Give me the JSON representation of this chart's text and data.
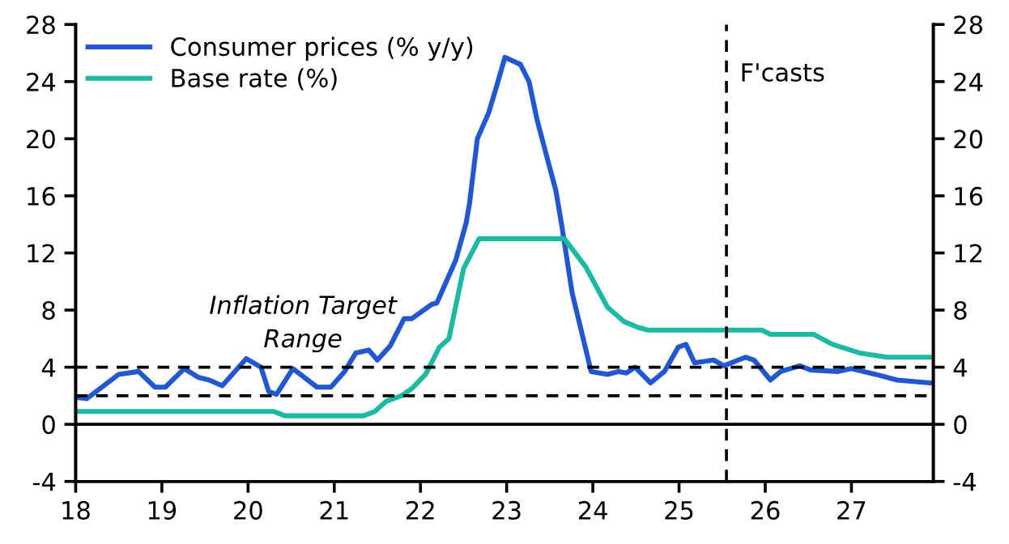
{
  "chart_data": {
    "type": "line",
    "xlim": [
      18,
      27.95
    ],
    "xticks": [
      18,
      19,
      20,
      21,
      22,
      23,
      24,
      25,
      26,
      27
    ],
    "ylim": [
      -4,
      28
    ],
    "yticks": [
      -4,
      0,
      4,
      8,
      12,
      16,
      20,
      24,
      28
    ],
    "y2lim": [
      -4,
      28
    ],
    "y2ticks": [
      -4,
      0,
      4,
      8,
      12,
      16,
      20,
      24,
      28
    ],
    "grid": false,
    "legend": "top left",
    "marker": "none",
    "line_style": "solid",
    "series": [
      {
        "name": "Consumer prices (% y/y)",
        "color": "#2157d1",
        "x": [
          18.0,
          18.13,
          18.5,
          18.73,
          18.92,
          19.04,
          19.26,
          19.42,
          19.55,
          19.7,
          19.98,
          20.15,
          20.24,
          20.33,
          20.52,
          20.8,
          20.96,
          21.12,
          21.25,
          21.4,
          21.5,
          21.65,
          21.81,
          21.9,
          22.13,
          22.19,
          22.41,
          22.53,
          22.57,
          22.66,
          22.79,
          22.88,
          22.98,
          23.16,
          23.26,
          23.35,
          23.45,
          23.57,
          23.64,
          23.76,
          23.98,
          24.17,
          24.3,
          24.39,
          24.49,
          24.67,
          24.83,
          24.99,
          25.08,
          25.18,
          25.4,
          25.52,
          25.77,
          25.87,
          26.06,
          26.18,
          26.4,
          26.53,
          26.84,
          27.0,
          27.28,
          27.53,
          27.72,
          27.91
        ],
        "values": [
          1.9,
          1.8,
          3.5,
          3.7,
          2.6,
          2.6,
          3.9,
          3.3,
          3.1,
          2.7,
          4.6,
          4.0,
          2.3,
          2.1,
          3.9,
          2.6,
          2.6,
          3.7,
          5.0,
          5.2,
          4.5,
          5.5,
          7.4,
          7.4,
          8.4,
          8.5,
          11.5,
          14.1,
          15.5,
          20.0,
          21.8,
          23.6,
          25.7,
          25.2,
          24.0,
          21.4,
          19.1,
          16.4,
          13.9,
          9.2,
          3.7,
          3.5,
          3.7,
          3.6,
          4.0,
          2.9,
          3.7,
          5.4,
          5.6,
          4.3,
          4.5,
          4.1,
          4.7,
          4.5,
          3.1,
          3.7,
          4.1,
          3.8,
          3.7,
          3.9,
          3.5,
          3.1,
          3.0,
          2.9
        ]
      },
      {
        "name": "Base rate (%)",
        "color": "#1db9a3",
        "x": [
          18.0,
          20.3,
          20.43,
          21.34,
          21.47,
          21.6,
          21.78,
          21.9,
          22.06,
          22.22,
          22.33,
          22.5,
          22.68,
          23.67,
          23.92,
          24.17,
          24.36,
          24.52,
          24.64,
          25.96,
          26.06,
          26.56,
          26.78,
          27.09,
          27.41,
          27.91
        ],
        "values": [
          0.9,
          0.9,
          0.6,
          0.6,
          0.9,
          1.6,
          2.0,
          2.5,
          3.5,
          5.4,
          6.0,
          10.9,
          13.0,
          13.0,
          11.0,
          8.2,
          7.2,
          6.8,
          6.6,
          6.6,
          6.3,
          6.3,
          5.6,
          5.0,
          4.7,
          4.7
        ]
      }
    ],
    "ref_lines": [
      {
        "axis": "y",
        "value": 0,
        "color": "#000000",
        "line_style": "solid"
      },
      {
        "axis": "y",
        "value": 4,
        "color": "#000000",
        "line_style": "dashed"
      },
      {
        "axis": "y",
        "value": 2,
        "color": "#000000",
        "line_style": "dashed"
      },
      {
        "axis": "x",
        "value": 25.55,
        "label": "F'casts",
        "color": "#000000",
        "line_style": "dashed"
      }
    ],
    "annotations": [
      "Inflation Target\nRange"
    ]
  }
}
